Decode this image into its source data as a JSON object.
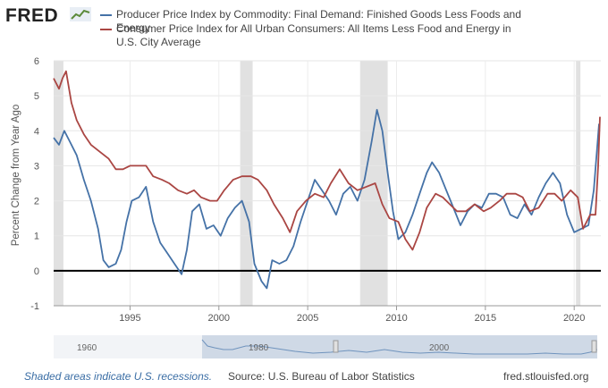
{
  "logo": {
    "text": "FRED"
  },
  "legend": [
    {
      "name": "Producer Price Index by Commodity: Final Demand: Finished Goods Less Foods and Energy",
      "line1": "Producer Price Index by Commodity: Final Demand: Finished Goods Less Foods and",
      "line2": "Energy",
      "color": "#4572a7"
    },
    {
      "name": "Consumer Price Index for All Urban Consumers: All Items Less Food and Energy in U.S. City Average",
      "line1": "Consumer Price Index for All Urban Consumers: All Items Less Food and Energy in",
      "line2": "U.S. City Average",
      "color": "#aa4643"
    }
  ],
  "chart_data": {
    "type": "line",
    "ylabel": "Percent Change from Year Ago",
    "xlim": [
      1990.7,
      2021.5
    ],
    "ylim": [
      -1,
      6
    ],
    "yticks": [
      -1,
      0,
      1,
      2,
      3,
      4,
      5,
      6
    ],
    "xticks": [
      1995,
      2000,
      2005,
      2010,
      2015,
      2020
    ],
    "grid": true,
    "recessions": [
      [
        1990.6,
        1991.25
      ],
      [
        2001.2,
        2001.9
      ],
      [
        2007.95,
        2009.5
      ],
      [
        2020.1,
        2020.35
      ]
    ],
    "series": [
      {
        "name": "Producer Price Index by Commodity: Final Demand: Finished Goods Less Foods and Energy",
        "color": "#4572a7",
        "points": [
          [
            1990.7,
            3.8
          ],
          [
            1991.0,
            3.6
          ],
          [
            1991.3,
            4.0
          ],
          [
            1991.6,
            3.7
          ],
          [
            1992.0,
            3.3
          ],
          [
            1992.4,
            2.6
          ],
          [
            1992.8,
            2.0
          ],
          [
            1993.2,
            1.2
          ],
          [
            1993.5,
            0.3
          ],
          [
            1993.8,
            0.1
          ],
          [
            1994.2,
            0.2
          ],
          [
            1994.5,
            0.6
          ],
          [
            1994.8,
            1.4
          ],
          [
            1995.1,
            2.0
          ],
          [
            1995.5,
            2.1
          ],
          [
            1995.9,
            2.4
          ],
          [
            1996.3,
            1.4
          ],
          [
            1996.7,
            0.8
          ],
          [
            1997.1,
            0.5
          ],
          [
            1997.5,
            0.2
          ],
          [
            1997.9,
            -0.1
          ],
          [
            1998.2,
            0.6
          ],
          [
            1998.5,
            1.7
          ],
          [
            1998.9,
            1.9
          ],
          [
            1999.3,
            1.2
          ],
          [
            1999.7,
            1.3
          ],
          [
            2000.1,
            1.0
          ],
          [
            2000.5,
            1.5
          ],
          [
            2000.9,
            1.8
          ],
          [
            2001.3,
            2.0
          ],
          [
            2001.7,
            1.4
          ],
          [
            2002.0,
            0.2
          ],
          [
            2002.4,
            -0.3
          ],
          [
            2002.7,
            -0.5
          ],
          [
            2003.0,
            0.3
          ],
          [
            2003.4,
            0.2
          ],
          [
            2003.8,
            0.3
          ],
          [
            2004.2,
            0.7
          ],
          [
            2004.6,
            1.4
          ],
          [
            2005.0,
            2.0
          ],
          [
            2005.4,
            2.6
          ],
          [
            2005.8,
            2.3
          ],
          [
            2006.2,
            2.0
          ],
          [
            2006.6,
            1.6
          ],
          [
            2007.0,
            2.2
          ],
          [
            2007.4,
            2.4
          ],
          [
            2007.8,
            2.0
          ],
          [
            2008.2,
            2.6
          ],
          [
            2008.6,
            3.7
          ],
          [
            2008.9,
            4.6
          ],
          [
            2009.2,
            4.0
          ],
          [
            2009.5,
            2.8
          ],
          [
            2009.8,
            1.7
          ],
          [
            2010.1,
            0.9
          ],
          [
            2010.5,
            1.1
          ],
          [
            2010.9,
            1.6
          ],
          [
            2011.3,
            2.2
          ],
          [
            2011.7,
            2.8
          ],
          [
            2012.0,
            3.1
          ],
          [
            2012.4,
            2.8
          ],
          [
            2012.8,
            2.3
          ],
          [
            2013.2,
            1.8
          ],
          [
            2013.6,
            1.3
          ],
          [
            2014.0,
            1.7
          ],
          [
            2014.4,
            1.9
          ],
          [
            2014.8,
            1.8
          ],
          [
            2015.2,
            2.2
          ],
          [
            2015.6,
            2.2
          ],
          [
            2016.0,
            2.1
          ],
          [
            2016.4,
            1.6
          ],
          [
            2016.8,
            1.5
          ],
          [
            2017.2,
            1.9
          ],
          [
            2017.6,
            1.6
          ],
          [
            2018.0,
            2.1
          ],
          [
            2018.4,
            2.5
          ],
          [
            2018.8,
            2.8
          ],
          [
            2019.2,
            2.5
          ],
          [
            2019.6,
            1.6
          ],
          [
            2020.0,
            1.1
          ],
          [
            2020.4,
            1.2
          ],
          [
            2020.8,
            1.3
          ],
          [
            2021.1,
            2.3
          ],
          [
            2021.4,
            4.2
          ]
        ]
      },
      {
        "name": "Consumer Price Index for All Urban Consumers: All Items Less Food and Energy in U.S. City Average",
        "color": "#aa4643",
        "points": [
          [
            1990.7,
            5.5
          ],
          [
            1991.0,
            5.2
          ],
          [
            1991.2,
            5.5
          ],
          [
            1991.4,
            5.7
          ],
          [
            1991.7,
            4.8
          ],
          [
            1992.0,
            4.3
          ],
          [
            1992.4,
            3.9
          ],
          [
            1992.8,
            3.6
          ],
          [
            1993.3,
            3.4
          ],
          [
            1993.8,
            3.2
          ],
          [
            1994.2,
            2.9
          ],
          [
            1994.6,
            2.9
          ],
          [
            1995.0,
            3.0
          ],
          [
            1995.5,
            3.0
          ],
          [
            1995.9,
            3.0
          ],
          [
            1996.3,
            2.7
          ],
          [
            1996.8,
            2.6
          ],
          [
            1997.2,
            2.5
          ],
          [
            1997.7,
            2.3
          ],
          [
            1998.2,
            2.2
          ],
          [
            1998.6,
            2.3
          ],
          [
            1999.0,
            2.1
          ],
          [
            1999.5,
            2.0
          ],
          [
            1999.9,
            2.0
          ],
          [
            2000.3,
            2.3
          ],
          [
            2000.8,
            2.6
          ],
          [
            2001.3,
            2.7
          ],
          [
            2001.8,
            2.7
          ],
          [
            2002.2,
            2.6
          ],
          [
            2002.7,
            2.3
          ],
          [
            2003.1,
            1.9
          ],
          [
            2003.6,
            1.5
          ],
          [
            2004.0,
            1.1
          ],
          [
            2004.4,
            1.7
          ],
          [
            2004.9,
            2.0
          ],
          [
            2005.4,
            2.2
          ],
          [
            2005.9,
            2.1
          ],
          [
            2006.3,
            2.5
          ],
          [
            2006.8,
            2.9
          ],
          [
            2007.3,
            2.5
          ],
          [
            2007.8,
            2.3
          ],
          [
            2008.3,
            2.4
          ],
          [
            2008.8,
            2.5
          ],
          [
            2009.2,
            1.9
          ],
          [
            2009.6,
            1.5
          ],
          [
            2010.1,
            1.4
          ],
          [
            2010.5,
            0.9
          ],
          [
            2010.9,
            0.6
          ],
          [
            2011.3,
            1.1
          ],
          [
            2011.7,
            1.8
          ],
          [
            2012.2,
            2.2
          ],
          [
            2012.6,
            2.1
          ],
          [
            2013.0,
            1.9
          ],
          [
            2013.4,
            1.7
          ],
          [
            2013.9,
            1.7
          ],
          [
            2014.4,
            1.9
          ],
          [
            2014.9,
            1.7
          ],
          [
            2015.3,
            1.8
          ],
          [
            2015.8,
            2.0
          ],
          [
            2016.2,
            2.2
          ],
          [
            2016.7,
            2.2
          ],
          [
            2017.1,
            2.1
          ],
          [
            2017.5,
            1.7
          ],
          [
            2018.0,
            1.8
          ],
          [
            2018.5,
            2.2
          ],
          [
            2018.9,
            2.2
          ],
          [
            2019.3,
            2.0
          ],
          [
            2019.8,
            2.3
          ],
          [
            2020.2,
            2.1
          ],
          [
            2020.5,
            1.2
          ],
          [
            2020.9,
            1.6
          ],
          [
            2021.2,
            1.6
          ],
          [
            2021.35,
            3.0
          ],
          [
            2021.45,
            4.4
          ]
        ]
      }
    ]
  },
  "navigator": {
    "labels": [
      "1960",
      "1980",
      "2000"
    ]
  },
  "footer": {
    "recession_note": "Shaded areas indicate U.S. recessions.",
    "source": "Source: U.S. Bureau of Labor Statistics",
    "site": "fred.stlouisfed.org"
  }
}
